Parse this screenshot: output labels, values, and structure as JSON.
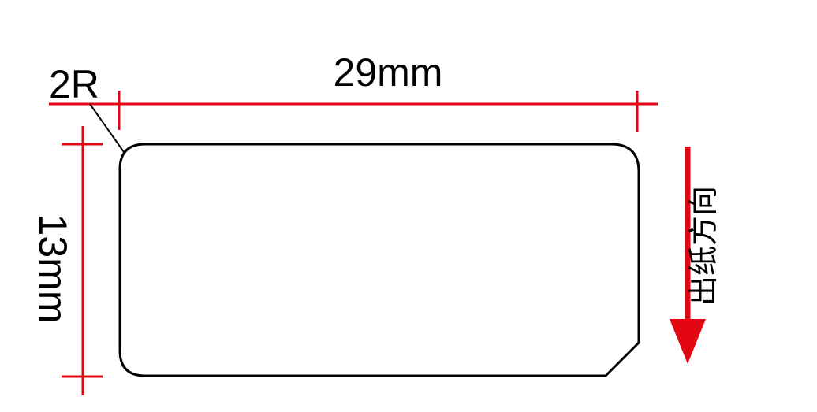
{
  "diagram": {
    "width_label": "29mm",
    "height_label": "13mm",
    "radius_label": "2R",
    "direction_label": "出纸方向"
  },
  "colors": {
    "outline": "#000000",
    "dimension": "#e30613",
    "arrow": "#e30613"
  }
}
